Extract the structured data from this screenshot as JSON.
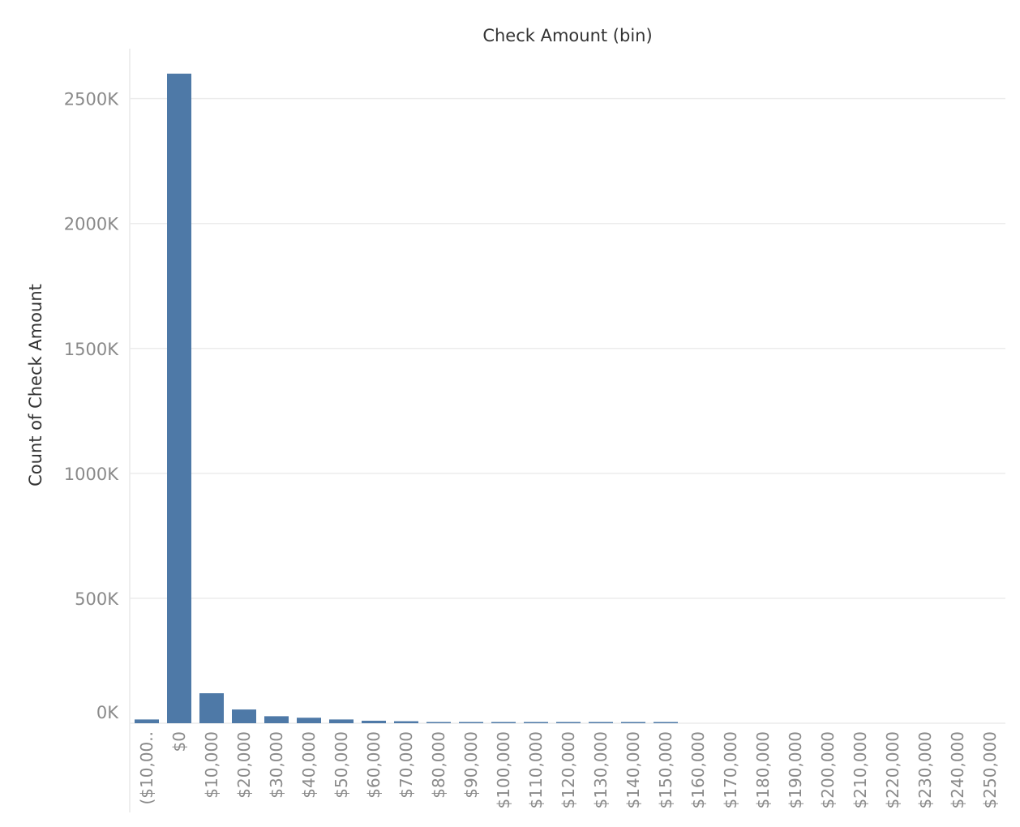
{
  "chart_data": {
    "type": "bar",
    "title": "",
    "xlabel": "Check Amount (bin)",
    "ylabel": "Count of Check Amount",
    "categories": [
      "($10,00..",
      "$0",
      "$10,000",
      "$20,000",
      "$30,000",
      "$40,000",
      "$50,000",
      "$60,000",
      "$70,000",
      "$80,000",
      "$90,000",
      "$100,000",
      "$110,000",
      "$120,000",
      "$130,000",
      "$140,000",
      "$150,000",
      "$160,000",
      "$170,000",
      "$180,000",
      "$190,000",
      "$200,000",
      "$210,000",
      "$220,000",
      "$230,000",
      "$240,000",
      "$250,000"
    ],
    "values": [
      15000,
      2600000,
      120000,
      55000,
      28000,
      22000,
      15000,
      10000,
      8000,
      3000,
      2500,
      2000,
      1500,
      1500,
      1200,
      1000,
      1000,
      0,
      0,
      0,
      0,
      0,
      0,
      0,
      0,
      0,
      0
    ],
    "ylim": [
      0,
      2700000
    ],
    "yticks": [
      0,
      500000,
      1000000,
      1500000,
      2000000,
      2500000
    ],
    "ytick_labels": [
      "0K",
      "500K",
      "1000K",
      "1500K",
      "2000K",
      "2500K"
    ],
    "grid": true,
    "legend": "none",
    "bar_color": "#4e79a7"
  }
}
